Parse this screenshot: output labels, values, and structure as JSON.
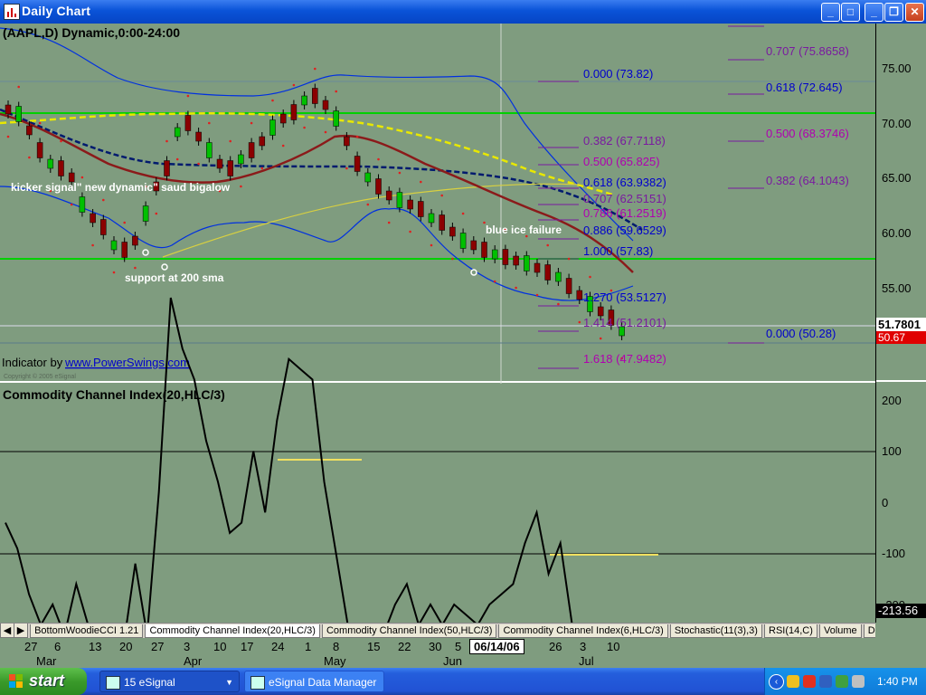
{
  "window": {
    "title": "Daily Chart",
    "buttons": [
      "_",
      "□",
      "✕"
    ],
    "inner_buttons": [
      "_",
      "❐",
      "✕"
    ]
  },
  "chart": {
    "header": "(AAPL,D) Dynamic,0:00-24:00",
    "indicator_prefix": "Indicator by",
    "indicator_link": "www.PowerSwings.com",
    "copyright": "Copyright © 2005 eSignal",
    "annotations": {
      "kicker": "kicker signal\" new dynamic\" saud bigalow",
      "support": "support at 200 sma",
      "blue_ice": "blue ice failure"
    },
    "price_axis": [
      "75.00",
      "70.00",
      "65.00",
      "60.00",
      "55.00"
    ],
    "last_price": "51.7801",
    "last_tag": "50.67",
    "fib_mid": [
      {
        "label": "0.000 (73.82)",
        "color": "blue"
      },
      {
        "label": "0.382 (67.7118)",
        "color": "purple"
      },
      {
        "label": "0.500 (65.825)",
        "color": "magenta"
      },
      {
        "label": "0.618 (63.9382)",
        "color": "blue"
      },
      {
        "label": "0.707 (62.5151)",
        "color": "purple"
      },
      {
        "label": "0.786 (61.2519)",
        "color": "magenta"
      },
      {
        "label": "0.886 (59.6529)",
        "color": "blue"
      },
      {
        "label": "1.000 (57.83)",
        "color": "blue"
      },
      {
        "label": "1.270 (53.5127)",
        "color": "blue"
      },
      {
        "label": "1.414 (51.2101)",
        "color": "purple"
      },
      {
        "label": "1.618 (47.9482)",
        "color": "magenta"
      }
    ],
    "fib_right": [
      {
        "label": "0.707 (75.8658)",
        "color": "purple"
      },
      {
        "label": "0.618 (72.645)",
        "color": "blue"
      },
      {
        "label": "0.500 (68.3746)",
        "color": "magenta"
      },
      {
        "label": "0.382 (64.1043)",
        "color": "purple"
      },
      {
        "label": "0.000 (50.28)",
        "color": "blue"
      }
    ]
  },
  "cci": {
    "title": "Commodity Channel Index(20,HLC/3)",
    "axis": [
      "200",
      "100",
      "0",
      "-100",
      "-200"
    ],
    "last_value": "-213.56"
  },
  "tabs": [
    "BottomWoodieCCI 1.21",
    "Commodity Channel Index(20,HLC/3)",
    "Commodity Channel Index(50,HLC/3)",
    "Commodity Channel Index(6,HLC/3)",
    "Stochastic(11(3),3)",
    "RSI(14,C)",
    "Volume",
    "Directiona"
  ],
  "x_axis": {
    "days": [
      "27",
      "6",
      "13",
      "20",
      "27",
      "3",
      "10",
      "17",
      "24",
      "1",
      "8",
      "15",
      "22",
      "30",
      "5",
      "26",
      "3",
      "10"
    ],
    "months": [
      "Mar",
      "Apr",
      "May",
      "Jun",
      "Jul"
    ],
    "cursor_date": "06/14/06"
  },
  "taskbar": {
    "start": "start",
    "task1": "15 eSignal",
    "task2": "eSignal Data Manager",
    "clock": "1:40 PM"
  },
  "colors": {
    "chart_bg": "#7f9c7f",
    "green_line": "#00d000",
    "ma_red": "#8b1a1a",
    "ma_yellow": "#e8e800",
    "ma_navy": "#001a6e",
    "band_blue": "#0030e0"
  },
  "chart_data": [
    {
      "type": "line",
      "title": "Commodity Channel Index(20,HLC/3)",
      "ylim": [
        -250,
        250
      ],
      "reference_lines": [
        100,
        -100
      ],
      "series": [
        {
          "name": "CCI(20,HLC/3)",
          "values": [
            -20,
            -45,
            -90,
            -120,
            -100,
            -130,
            -80,
            -120,
            -160,
            -120,
            -140,
            -60,
            -130,
            10,
            200,
            150,
            120,
            60,
            20,
            -30,
            -20,
            50,
            -10,
            80,
            140,
            130,
            120,
            20,
            -50,
            -120,
            -140,
            -120,
            -130,
            -100,
            -80,
            -120,
            -100,
            -120,
            -100,
            -110,
            -120,
            -100,
            -90,
            -80,
            -40,
            -10,
            -70,
            -40,
            -120,
            -190,
            -200,
            -210,
            -200,
            -213
          ]
        }
      ]
    }
  ]
}
